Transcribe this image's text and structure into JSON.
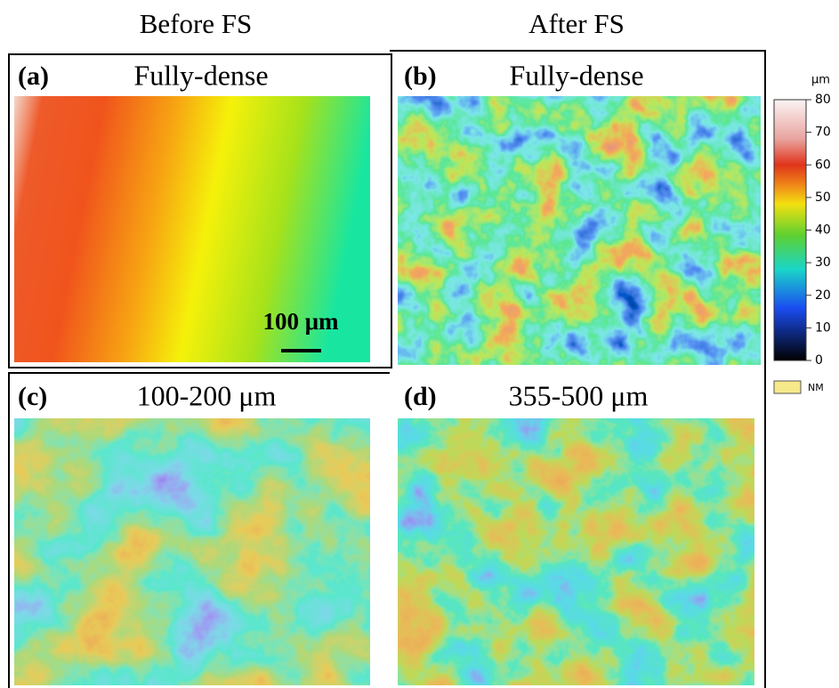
{
  "headings": [
    "Before FS",
    "After FS"
  ],
  "panels": [
    {
      "letter": "(a)",
      "title": "Fully-dense"
    },
    {
      "letter": "(b)",
      "title": "Fully-dense"
    },
    {
      "letter": "(c)",
      "title": "100-200 μm"
    },
    {
      "letter": "(d)",
      "title": "355-500 μm"
    }
  ],
  "scale_bar": "100 μm",
  "colorbar": {
    "unit": "μm",
    "range": [
      0,
      80
    ],
    "ticks": [
      0,
      10,
      20,
      30,
      40,
      50,
      60,
      70,
      80
    ]
  },
  "legend": "NM"
}
